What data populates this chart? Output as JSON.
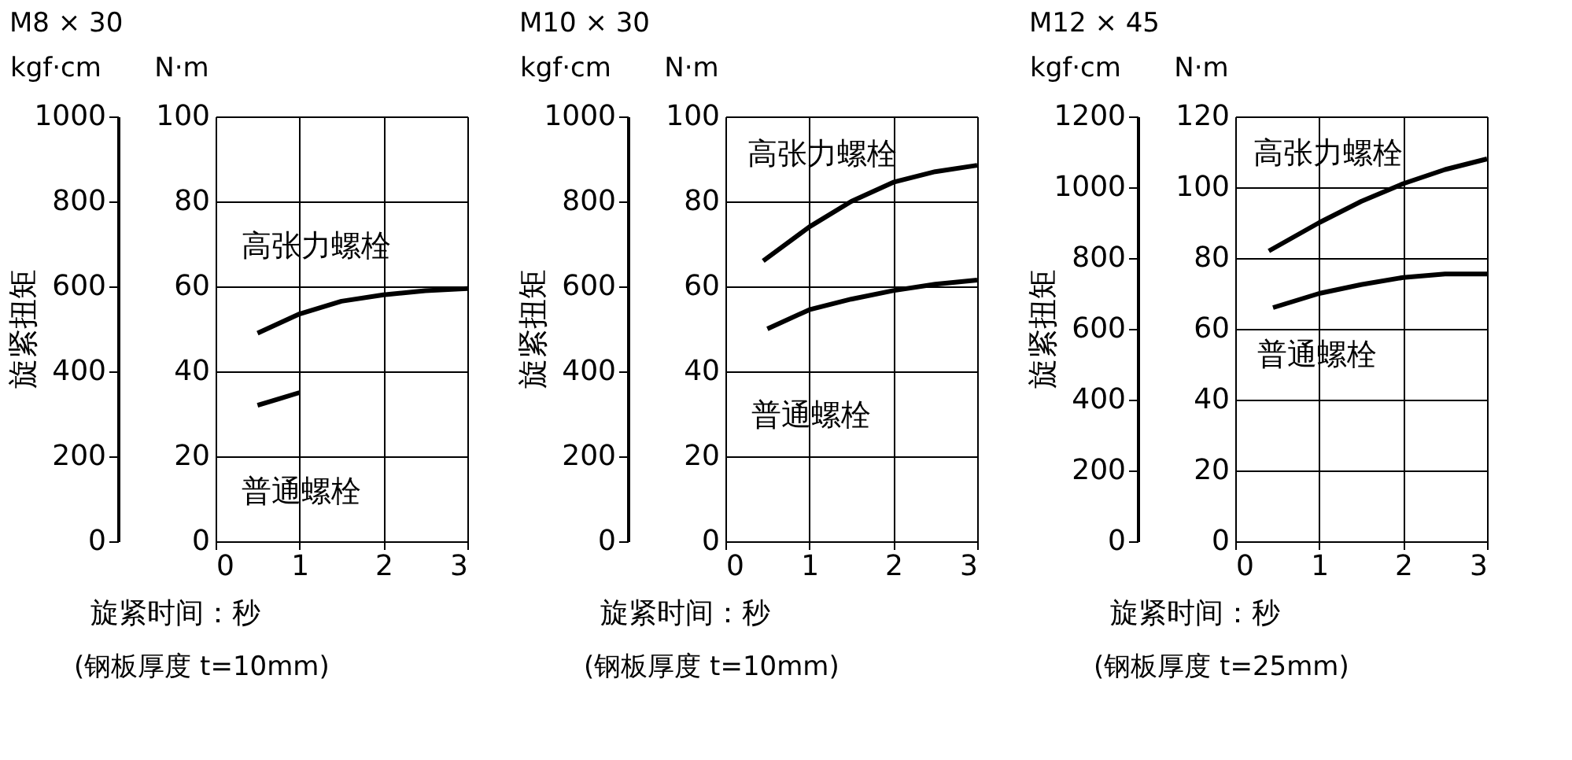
{
  "chart_data": [
    {
      "type": "line",
      "title": "M8 × 30",
      "ylabel": "kgf·cm",
      "y2label": "N·m",
      "xlabel": "旋紧时间：秒",
      "annotations": [
        "旋紧扭矩",
        "(钢板厚度 t=10mm)"
      ],
      "xlim": [
        0,
        3
      ],
      "xticks": [
        0,
        1,
        2,
        3
      ],
      "ylim": [
        0,
        1000
      ],
      "yticks": [
        0,
        200,
        400,
        600,
        800,
        1000
      ],
      "y2lim": [
        0,
        100
      ],
      "y2ticks": [
        0,
        20,
        40,
        60,
        80,
        100
      ],
      "grid": true,
      "legend": false,
      "line_style": "solid",
      "marker": "none",
      "series": [
        {
          "name": "高张力螺栓",
          "color": "#000000",
          "axis": "y2",
          "x": [
            0.5,
            1,
            1.5,
            2,
            2.5,
            3
          ],
          "values": [
            49,
            53.5,
            56.5,
            58,
            59,
            59.5
          ]
        },
        {
          "name": "普通螺栓",
          "color": "#000000",
          "axis": "y2",
          "x": [
            0.5,
            0.75,
            1
          ],
          "values": [
            32,
            33.5,
            35
          ]
        }
      ]
    },
    {
      "type": "line",
      "title": "M10 × 30",
      "ylabel": "kgf·cm",
      "y2label": "N·m",
      "xlabel": "旋紧时间：秒",
      "annotations": [
        "旋紧扭矩",
        "(钢板厚度 t=10mm)"
      ],
      "xlim": [
        0,
        3
      ],
      "xticks": [
        0,
        1,
        2,
        3
      ],
      "ylim": [
        0,
        1000
      ],
      "yticks": [
        0,
        200,
        400,
        600,
        800,
        1000
      ],
      "y2lim": [
        0,
        100
      ],
      "y2ticks": [
        0,
        20,
        40,
        60,
        80,
        100
      ],
      "grid": true,
      "legend": false,
      "line_style": "solid",
      "marker": "none",
      "series": [
        {
          "name": "高张力螺栓",
          "color": "#000000",
          "axis": "y2",
          "x": [
            0.45,
            1,
            1.5,
            2,
            2.5,
            3
          ],
          "values": [
            66,
            74,
            80,
            84.5,
            87,
            88.5
          ]
        },
        {
          "name": "普通螺栓",
          "color": "#000000",
          "axis": "y2",
          "x": [
            0.5,
            1,
            1.5,
            2,
            2.5,
            3
          ],
          "values": [
            50,
            54.5,
            57,
            59,
            60.5,
            61.5
          ]
        }
      ]
    },
    {
      "type": "line",
      "title": "M12 × 45",
      "ylabel": "kgf·cm",
      "y2label": "N·m",
      "xlabel": "旋紧时间：秒",
      "annotations": [
        "旋紧扭矩",
        "(钢板厚度 t=25mm)"
      ],
      "xlim": [
        0,
        3
      ],
      "xticks": [
        0,
        1,
        2,
        3
      ],
      "ylim": [
        0,
        1200
      ],
      "yticks": [
        0,
        200,
        400,
        600,
        800,
        1000,
        1200
      ],
      "y2lim": [
        0,
        120
      ],
      "y2ticks": [
        0,
        20,
        40,
        60,
        80,
        100,
        120
      ],
      "grid": true,
      "legend": false,
      "line_style": "solid",
      "marker": "none",
      "series": [
        {
          "name": "高张力螺栓",
          "color": "#000000",
          "axis": "y2",
          "x": [
            0.4,
            1,
            1.5,
            2,
            2.5,
            3
          ],
          "values": [
            82,
            90,
            96,
            101,
            105,
            108
          ]
        },
        {
          "name": "普通螺栓",
          "color": "#000000",
          "axis": "y2",
          "x": [
            0.45,
            1,
            1.5,
            2,
            2.5,
            3
          ],
          "values": [
            66,
            70,
            72.5,
            74.5,
            75.5,
            75.5
          ]
        }
      ]
    }
  ]
}
